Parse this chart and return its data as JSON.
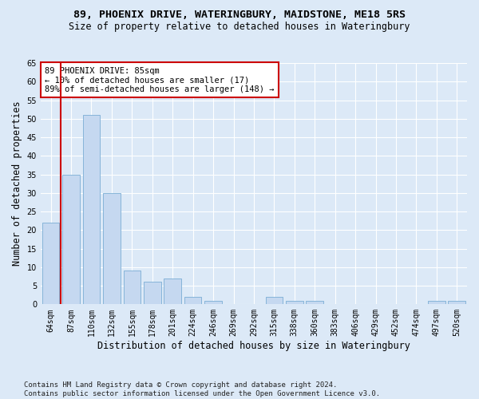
{
  "title": "89, PHOENIX DRIVE, WATERINGBURY, MAIDSTONE, ME18 5RS",
  "subtitle": "Size of property relative to detached houses in Wateringbury",
  "xlabel": "Distribution of detached houses by size in Wateringbury",
  "ylabel": "Number of detached properties",
  "categories": [
    "64sqm",
    "87sqm",
    "110sqm",
    "132sqm",
    "155sqm",
    "178sqm",
    "201sqm",
    "224sqm",
    "246sqm",
    "269sqm",
    "292sqm",
    "315sqm",
    "338sqm",
    "360sqm",
    "383sqm",
    "406sqm",
    "429sqm",
    "452sqm",
    "474sqm",
    "497sqm",
    "520sqm"
  ],
  "values": [
    22,
    35,
    51,
    30,
    9,
    6,
    7,
    2,
    1,
    0,
    0,
    2,
    1,
    1,
    0,
    0,
    0,
    0,
    0,
    1,
    1
  ],
  "bar_color": "#c5d8f0",
  "bar_edge_color": "#7aadd4",
  "highlight_color": "#cc0000",
  "highlight_index": 1,
  "annotation_text": "89 PHOENIX DRIVE: 85sqm\n← 10% of detached houses are smaller (17)\n89% of semi-detached houses are larger (148) →",
  "annotation_box_color": "#ffffff",
  "annotation_box_edge_color": "#cc0000",
  "ylim": [
    0,
    65
  ],
  "yticks": [
    0,
    5,
    10,
    15,
    20,
    25,
    30,
    35,
    40,
    45,
    50,
    55,
    60,
    65
  ],
  "footer": "Contains HM Land Registry data © Crown copyright and database right 2024.\nContains public sector information licensed under the Open Government Licence v3.0.",
  "bg_color": "#dce9f7",
  "plot_bg_color": "#dce9f7",
  "grid_color": "#ffffff",
  "title_fontsize": 9.5,
  "subtitle_fontsize": 8.5,
  "axis_label_fontsize": 8.5,
  "tick_fontsize": 7,
  "footer_fontsize": 6.5,
  "annotation_fontsize": 7.5
}
